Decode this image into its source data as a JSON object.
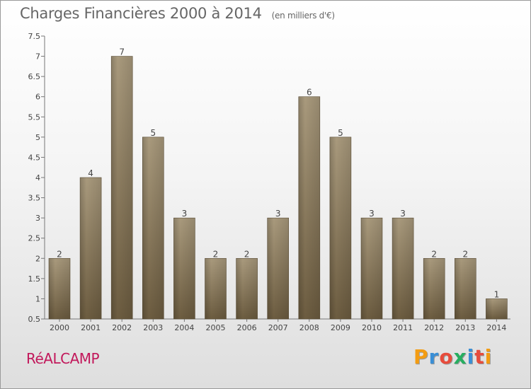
{
  "header": {
    "title": "Charges Financières 2000 à 2014",
    "subtitle": "(en milliers d'€)"
  },
  "footer": {
    "place": "RéALCAMP",
    "brand": "Proxiti",
    "brand_colors": [
      "#f39c12",
      "#3a8fd6",
      "#e74c3c",
      "#27ae60",
      "#3a8fd6",
      "#e74c3c",
      "#f39c12"
    ]
  },
  "chart_data": {
    "type": "bar",
    "categories": [
      "2000",
      "2001",
      "2002",
      "2003",
      "2004",
      "2005",
      "2006",
      "2007",
      "2008",
      "2009",
      "2010",
      "2011",
      "2012",
      "2013",
      "2014"
    ],
    "values": [
      2,
      4,
      7,
      5,
      3,
      2,
      2,
      3,
      6,
      5,
      3,
      3,
      2,
      2,
      1
    ],
    "data_labels": [
      "2",
      "4",
      "7",
      "5",
      "3",
      "2",
      "2",
      "3",
      "6",
      "5",
      "3",
      "3",
      "2",
      "2",
      "1"
    ],
    "yticks": [
      "0.5",
      "1",
      "1.5",
      "2",
      "2.5",
      "3",
      "3.5",
      "4",
      "4.5",
      "5",
      "5.5",
      "6",
      "6.5",
      "7",
      "7.5"
    ],
    "ylim": [
      0.5,
      7.5
    ],
    "bar_color": "#8b7b60",
    "grid": false
  }
}
